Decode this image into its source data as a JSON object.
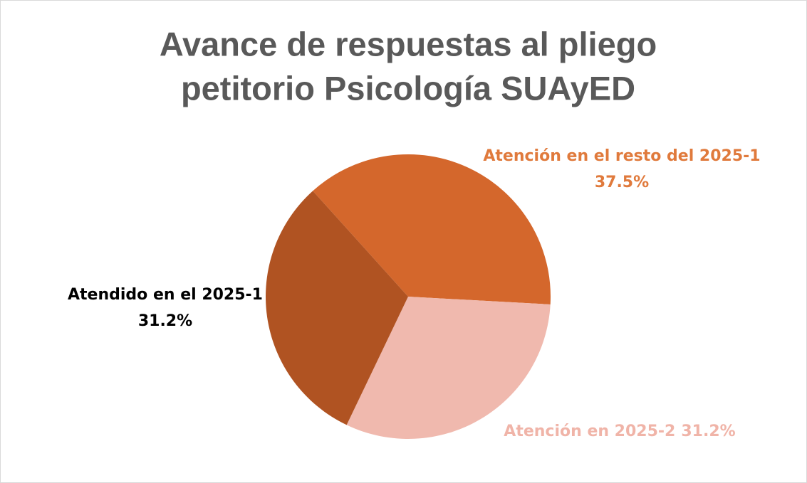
{
  "chart_data": {
    "type": "pie",
    "title": [
      "Avance de respuestas al pliego",
      "petitorio Psicología SUAyED"
    ],
    "categories": [
      "Atención en el resto del 2025-1",
      "Atención en 2025-2",
      "Atendido en el 2025-1"
    ],
    "values": [
      37.5,
      31.2,
      31.2
    ],
    "value_labels": [
      "37.5%",
      "31.2%",
      "31.2%"
    ],
    "colors": [
      "#d4672c",
      "#f0b9ae",
      "#b05322"
    ],
    "label_colors": [
      "#e07a3c",
      "#f0b4a8",
      "#000000"
    ]
  }
}
